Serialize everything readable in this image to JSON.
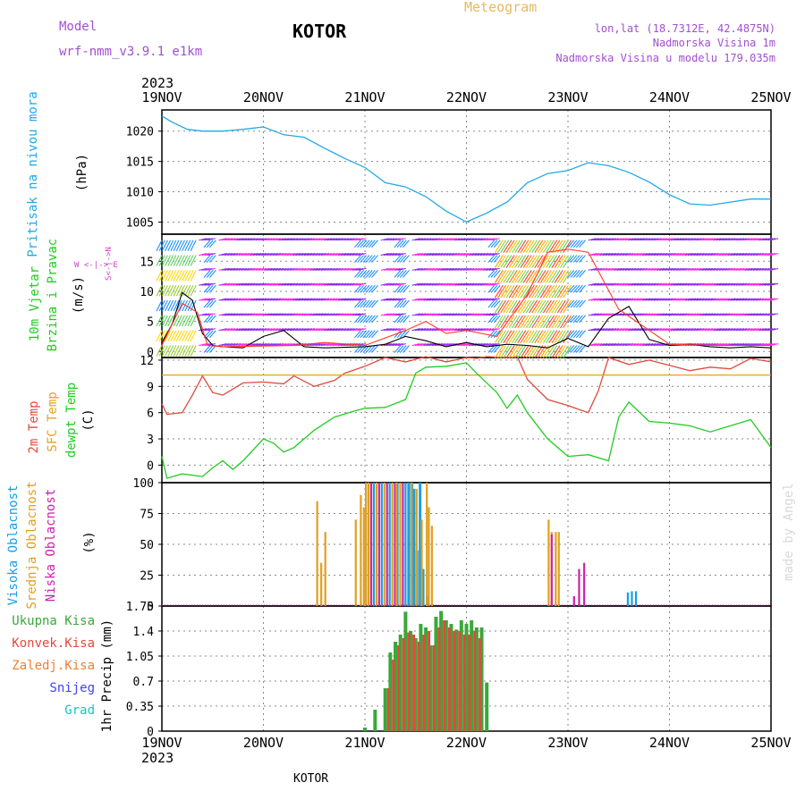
{
  "header": {
    "model_label": "Model",
    "model_value": "wrf-nmm_v3.9.1  e1km",
    "location": "KOTOR",
    "meteogram": "Meteogram",
    "lonlat": "lon,lat (18.7312E, 42.4875N)",
    "elevation": "Nadmorska Visina 1m",
    "model_elevation": "Nadmorska Visina u modelu 179.035m",
    "year_top": "2023",
    "year_bottom": "2023",
    "footer": "KOTOR",
    "watermark": "made by Angel"
  },
  "colors": {
    "pressure": "#22a8e6",
    "temp2m": "#e04a3c",
    "sfc": "#e8a020",
    "dewpt": "#22cc22",
    "high_cloud": "#1a9fe0",
    "mid_cloud": "#e0a020",
    "low_cloud": "#cc22aa",
    "total_precip": "#3aa83a",
    "conv_precip": "#e04a3c",
    "frozen": "#f08030",
    "snow": "#4040ff",
    "hail": "#20c0c0",
    "wind_label": "#22cc22",
    "dir_label": "#cc44cc",
    "header_purple": "#a050d0",
    "header_orange": "#e8b860"
  },
  "chart_data": [
    {
      "type": "line",
      "panel": "pressure",
      "ylabel_series": [
        "Pritisak na nivou mora"
      ],
      "ylabel_unit": "(hPa)",
      "xticks": [
        "19NOV",
        "20NOV",
        "21NOV",
        "22NOV",
        "23NOV",
        "24NOV",
        "25NOV"
      ],
      "ylim": [
        1003,
        1023.5
      ],
      "yticks": [
        1005,
        1010,
        1015,
        1020
      ],
      "grid": true,
      "series": [
        {
          "key": "pressure",
          "x": [
            0,
            0.1,
            0.25,
            0.4,
            0.6,
            0.8,
            1,
            1.2,
            1.4,
            1.6,
            1.8,
            2,
            2.2,
            2.4,
            2.6,
            2.8,
            3,
            3.2,
            3.4,
            3.6,
            3.8,
            4,
            4.2,
            4.4,
            4.6,
            4.8,
            5,
            5.2,
            5.4,
            5.6,
            5.8,
            6
          ],
          "y": [
            1022.5,
            1021.5,
            1020.3,
            1020.0,
            1020.0,
            1020.3,
            1020.7,
            1019.4,
            1019.0,
            1017.2,
            1015.5,
            1014.0,
            1011.5,
            1010.8,
            1009.2,
            1006.8,
            1005.0,
            1006.5,
            1008.3,
            1011.5,
            1013.0,
            1013.5,
            1014.8,
            1014.3,
            1013.2,
            1011.6,
            1009.5,
            1008.0,
            1007.8,
            1008.3,
            1008.8,
            1008.8
          ]
        }
      ]
    },
    {
      "type": "line",
      "panel": "wind",
      "ylabel_series": [
        "10m Vjetar",
        "Brzina i Pravac"
      ],
      "ylabel_unit": "(m/s)",
      "direction_legend": "W  <-|->  E",
      "direction_legend_vertical": "S<-|->N",
      "ylim": [
        -1,
        19.5
      ],
      "yticks": [
        0,
        5,
        10,
        15
      ],
      "grid": true,
      "series": [
        {
          "key": "speed",
          "x": [
            0,
            0.1,
            0.2,
            0.3,
            0.4,
            0.5,
            0.6,
            0.8,
            1,
            1.2,
            1.4,
            1.6,
            1.8,
            2,
            2.2,
            2.4,
            2.6,
            2.8,
            3,
            3.2,
            3.4,
            3.6,
            3.8,
            4,
            4.2,
            4.4,
            4.6,
            4.8,
            5,
            5.2,
            5.4,
            5.6,
            5.8,
            6
          ],
          "y": [
            1.5,
            4.5,
            9.8,
            8.5,
            3.0,
            1.0,
            0.8,
            0.6,
            2.5,
            3.5,
            0.8,
            0.6,
            0.7,
            0.8,
            1.2,
            2.5,
            1.8,
            0.8,
            1.5,
            0.8,
            1.2,
            1.0,
            0.6,
            2.2,
            0.8,
            5.5,
            7.5,
            2.0,
            1.0,
            1.2,
            0.8,
            0.6,
            0.8,
            0.6
          ]
        },
        {
          "key": "gust",
          "x": [
            0,
            0.2,
            0.35,
            0.45,
            0.6,
            1,
            1.3,
            1.6,
            2,
            2.4,
            2.6,
            2.8,
            3,
            3.3,
            3.6,
            3.8,
            4,
            4.2,
            4.5,
            5,
            5.5,
            6
          ],
          "y": [
            1.0,
            8.0,
            6.5,
            1.0,
            0.8,
            0.9,
            1.0,
            1.5,
            1.0,
            3.5,
            5.0,
            3.0,
            3.5,
            2.5,
            9.5,
            16.5,
            17.0,
            16.5,
            7.0,
            1.2,
            1.0,
            1.0
          ]
        }
      ]
    },
    {
      "type": "line",
      "panel": "temperature",
      "ylabel_series": [
        "2m Temp",
        "SFC Temp",
        "dewpt Temp"
      ],
      "ylabel_unit": "(C)",
      "ylim": [
        -2,
        12.3
      ],
      "yticks": [
        0,
        3,
        6,
        9,
        12
      ],
      "grid": true,
      "series": [
        {
          "key": "temp2m",
          "x": [
            0,
            0.05,
            0.2,
            0.3,
            0.4,
            0.5,
            0.6,
            0.8,
            1,
            1.2,
            1.3,
            1.5,
            1.7,
            1.8,
            2,
            2.2,
            2.4,
            2.6,
            2.8,
            3,
            3.1,
            3.2,
            3.4,
            3.5,
            3.6,
            3.8,
            4,
            4.2,
            4.3,
            4.4,
            4.6,
            4.8,
            5,
            5.2,
            5.4,
            5.6,
            5.8,
            6
          ],
          "y": [
            7.0,
            5.8,
            6.0,
            8.0,
            10.2,
            8.3,
            8.0,
            9.4,
            9.5,
            9.3,
            10.2,
            9.0,
            9.7,
            10.5,
            11.3,
            12.3,
            11.8,
            12.4,
            11.8,
            12.3,
            12.2,
            12.4,
            12.3,
            12.4,
            9.8,
            7.5,
            6.8,
            6.0,
            8.5,
            12.3,
            11.5,
            12.0,
            11.4,
            10.8,
            11.2,
            11.0,
            12.2,
            11.8
          ]
        },
        {
          "key": "sfc",
          "x": [
            0,
            6
          ],
          "y": [
            10.3,
            10.3
          ]
        },
        {
          "key": "dewpt",
          "x": [
            0,
            0.05,
            0.2,
            0.4,
            0.5,
            0.6,
            0.7,
            0.8,
            1,
            1.1,
            1.2,
            1.3,
            1.5,
            1.7,
            1.9,
            2,
            2.2,
            2.4,
            2.5,
            2.6,
            2.8,
            3,
            3.1,
            3.3,
            3.4,
            3.5,
            3.6,
            3.8,
            4,
            4.2,
            4.4,
            4.5,
            4.6,
            4.8,
            5,
            5.2,
            5.4,
            5.6,
            5.8,
            6
          ],
          "y": [
            1.0,
            -1.5,
            -1.0,
            -1.3,
            -0.3,
            0.5,
            -0.5,
            0.5,
            3.0,
            2.5,
            1.5,
            2.0,
            4.0,
            5.5,
            6.2,
            6.5,
            6.6,
            7.5,
            10.5,
            11.2,
            11.3,
            11.7,
            10.5,
            8.3,
            6.5,
            8.0,
            6.0,
            3.0,
            1.0,
            1.2,
            0.5,
            5.5,
            7.2,
            5.0,
            4.8,
            4.5,
            3.8,
            4.5,
            5.2,
            2.0
          ]
        }
      ]
    },
    {
      "type": "bar",
      "panel": "clouds",
      "ylabel_series": [
        "Visoka Oblacnost",
        "Srednja Oblacnost",
        "Niska Oblacnost"
      ],
      "ylabel_unit": "(%)",
      "ylim": [
        0,
        100
      ],
      "yticks": [
        0,
        25,
        50,
        75,
        100
      ],
      "grid": true,
      "series": [
        {
          "key": "high",
          "x": [
            4.58,
            4.62,
            4.66
          ],
          "y": [
            11,
            12,
            12
          ]
        },
        {
          "key": "high_block",
          "x": [
            2,
            2.42
          ],
          "y": [
            100,
            100
          ],
          "note": "dense block"
        },
        {
          "key": "mid",
          "x": [
            1.52,
            1.56,
            1.6,
            1.9,
            1.95,
            1.98,
            2.0,
            2.3,
            2.45,
            2.5,
            2.55,
            2.6,
            2.62,
            2.65,
            3.8,
            3.83,
            3.87,
            3.9
          ],
          "y": [
            85,
            35,
            60,
            70,
            90,
            80,
            100,
            100,
            100,
            95,
            70,
            100,
            80,
            65,
            70,
            60,
            60,
            60
          ]
        },
        {
          "key": "low",
          "x": [
            3.83,
            4.05,
            4.1,
            4.15
          ],
          "y": [
            58,
            8,
            30,
            35
          ]
        }
      ]
    },
    {
      "type": "bar",
      "panel": "precip",
      "ylabel_series": [
        "Ukupna Kisa",
        "Konvek.Kisa",
        "Zaledj.Kisa",
        "Snijeg",
        "Grad"
      ],
      "ylabel_unit": "1hr Precip (mm)",
      "ylim": [
        0,
        1.75
      ],
      "yticks": [
        0,
        0.35,
        0.7,
        1.05,
        1.4,
        1.75
      ],
      "ytick_labels": [
        "0",
        "0.35",
        "0.7",
        "1.05",
        "1.4",
        "1.75"
      ],
      "grid": true,
      "series": [
        {
          "key": "total",
          "x": [
            2.0,
            2.1,
            2.2,
            2.25,
            2.3,
            2.35,
            2.4,
            2.45,
            2.5,
            2.55,
            2.6,
            2.65,
            2.7,
            2.75,
            2.8,
            2.85,
            2.9,
            2.95,
            3.0,
            3.05,
            3.1,
            3.15,
            3.2
          ],
          "y": [
            0.05,
            0.3,
            0.6,
            1.1,
            1.25,
            1.35,
            1.67,
            1.4,
            1.3,
            1.5,
            1.45,
            1.2,
            1.6,
            1.68,
            1.55,
            1.5,
            1.42,
            1.55,
            1.5,
            1.55,
            1.45,
            1.45,
            0.68
          ]
        },
        {
          "key": "convective",
          "x": [
            2.2,
            2.25,
            2.3,
            2.35,
            2.4,
            2.45,
            2.5,
            2.55,
            2.6,
            2.65,
            2.7,
            2.75,
            2.8,
            2.85,
            2.9,
            2.95,
            3.0,
            3.05,
            3.1
          ],
          "y": [
            0.6,
            1.0,
            1.2,
            1.3,
            1.38,
            1.35,
            1.25,
            1.35,
            1.4,
            1.2,
            1.45,
            1.55,
            1.45,
            1.4,
            1.4,
            1.35,
            1.35,
            1.4,
            1.3
          ]
        }
      ]
    }
  ]
}
